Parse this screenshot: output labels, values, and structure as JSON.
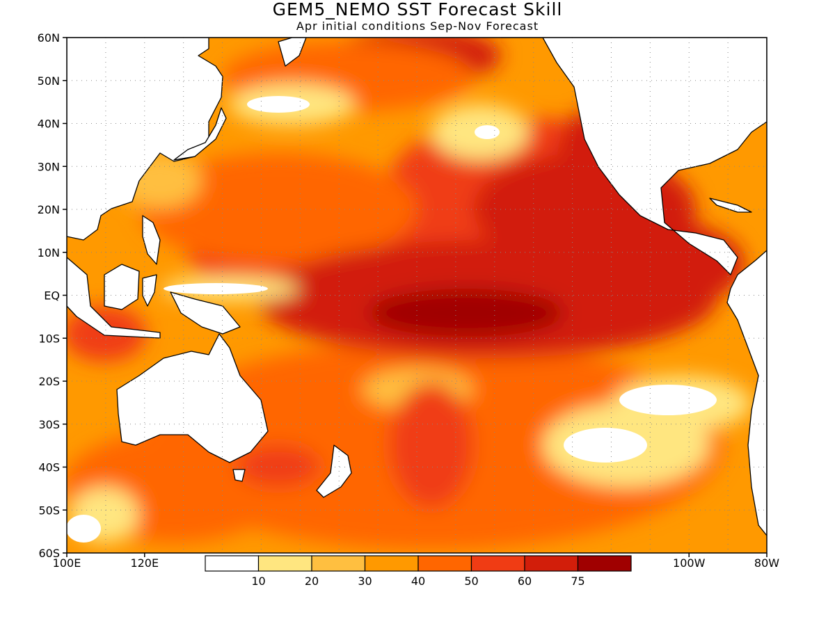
{
  "title": "GEM5_NEMO SST Forecast Skill",
  "subtitle": "Apr initial conditions  Sep-Nov Forecast",
  "map": {
    "projection": "lat-lon",
    "lon_range": [
      100,
      280
    ],
    "lat_range": [
      -60,
      60
    ],
    "grid": "dotted",
    "lat_ticks": [
      "60N",
      "50N",
      "40N",
      "30N",
      "20N",
      "10N",
      "EQ",
      "10S",
      "20S",
      "30S",
      "40S",
      "50S",
      "60S"
    ],
    "lon_ticks": [
      {
        "label": "100E",
        "lon": 100
      },
      {
        "label": "120E",
        "lon": 120
      },
      {
        "label": "100W",
        "lon": 260
      },
      {
        "label": "80W",
        "lon": 280
      }
    ]
  },
  "colorbar": {
    "bounds": [
      "10",
      "20",
      "30",
      "40",
      "50",
      "60",
      "75"
    ],
    "colors": [
      "#ffffff",
      "#ffe680",
      "#ffbf40",
      "#ff9900",
      "#ff6600",
      "#f03c14",
      "#d21e0a",
      "#a00000"
    ]
  },
  "land_color": "#ffffff",
  "coast_color": "#000000"
}
